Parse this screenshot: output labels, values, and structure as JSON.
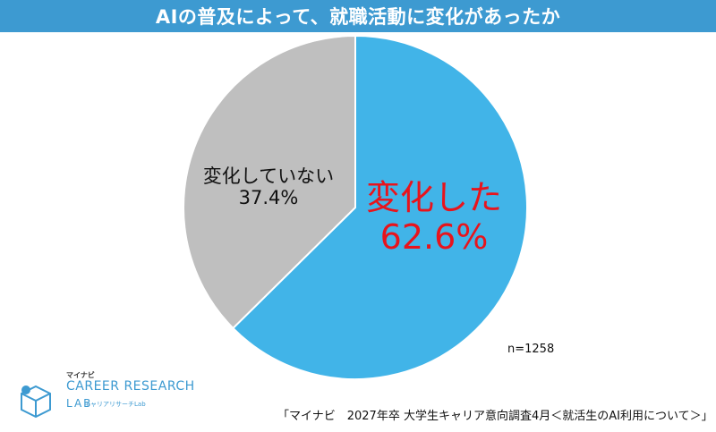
{
  "title": "AIの普及によって、就職活動に変化があったか",
  "chart_data": {
    "type": "pie",
    "categories": [
      "変化した",
      "変化していない"
    ],
    "values": [
      62.6,
      37.4
    ],
    "value_labels": [
      "62.6%",
      "37.4%"
    ],
    "colors": [
      "#41b4e8",
      "#bfbfbf"
    ],
    "start_angle_deg": 0,
    "direction": "clockwise"
  },
  "n_note": "n=1258",
  "source": "「マイナビ　2027年卒 大学生キャリア意向調査4月＜就活生のAI利用について＞」",
  "logo": {
    "top": "マイナビ",
    "main": "CAREER RESEARCH",
    "lab": "LAB",
    "sub": "キャリアリサーチLab"
  }
}
